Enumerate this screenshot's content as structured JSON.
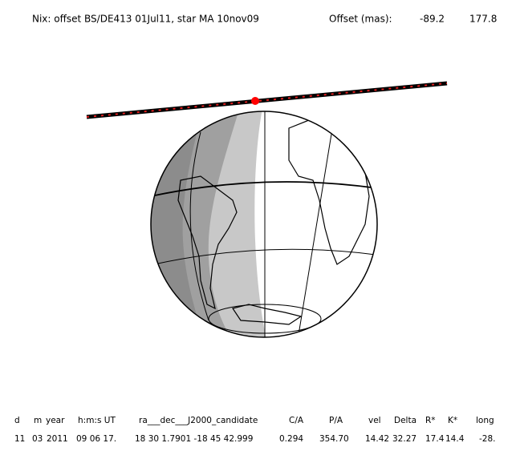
{
  "header": {
    "title": "Nix: offset BS/DE413 01Jul11, star MA 10nov09",
    "offset_label": "Offset (mas):",
    "offset_x": "-89.2",
    "offset_y": "177.8"
  },
  "table": {
    "columns": [
      "d",
      "m",
      "year",
      "h:m:s UT",
      "ra___dec___J2000_candidate",
      "C/A",
      "P/A",
      "vel",
      "Delta",
      "R*",
      "K*",
      "long"
    ],
    "rows": [
      [
        "11",
        "03",
        "2011",
        "09 06 17.",
        "18 30 1.7901 -18 45 42.999",
        "0.294",
        "354.70",
        "14.42",
        "32.27",
        "17.4",
        "14.4",
        "-28."
      ]
    ]
  }
}
